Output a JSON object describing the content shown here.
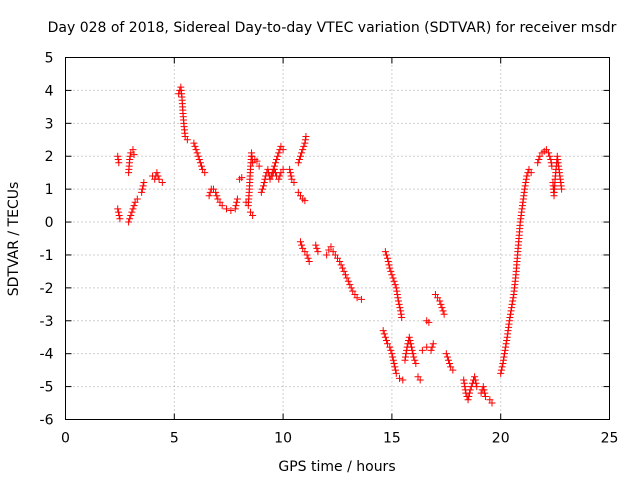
{
  "chart_data": {
    "type": "scatter",
    "title": "Day 028 of 2018, Sidereal Day-to-day VTEC variation (SDTVAR) for receiver msdr",
    "xlabel": "GPS time / hours",
    "ylabel": "SDTVAR / TECUs",
    "xlim": [
      0,
      25
    ],
    "ylim": [
      -6,
      5
    ],
    "xticks": [
      "0",
      "5",
      "10",
      "15",
      "20",
      "25"
    ],
    "yticks": [
      "5",
      "4",
      "3",
      "2",
      "1",
      "0",
      "-1",
      "-2",
      "-3",
      "-4",
      "-5",
      "-6"
    ],
    "grid": true,
    "marker": "+",
    "color": "#ff0000",
    "series": [
      {
        "name": "SDTVAR",
        "segments": [
          [
            [
              2.4,
              2.0
            ],
            [
              2.45,
              1.8
            ]
          ],
          [
            [
              2.4,
              0.4
            ],
            [
              2.5,
              0.1
            ]
          ],
          [
            [
              2.9,
              0.0
            ],
            [
              3.0,
              0.2
            ],
            [
              3.1,
              0.4
            ],
            [
              3.2,
              0.6
            ],
            [
              3.3,
              0.7
            ]
          ],
          [
            [
              2.9,
              1.5
            ],
            [
              2.95,
              1.9
            ],
            [
              3.0,
              2.1
            ],
            [
              3.1,
              2.2
            ],
            [
              3.15,
              2.05
            ]
          ],
          [
            [
              3.5,
              0.9
            ],
            [
              3.6,
              1.2
            ]
          ],
          [
            [
              4.0,
              1.4
            ],
            [
              4.1,
              1.3
            ],
            [
              4.2,
              1.5
            ],
            [
              4.3,
              1.3
            ],
            [
              4.45,
              1.2
            ]
          ],
          [
            [
              5.2,
              3.9
            ],
            [
              5.3,
              4.1
            ],
            [
              5.35,
              3.8
            ],
            [
              5.4,
              3.3
            ],
            [
              5.45,
              2.9
            ],
            [
              5.5,
              2.6
            ],
            [
              5.6,
              2.5
            ]
          ],
          [
            [
              5.9,
              2.4
            ],
            [
              6.0,
              2.2
            ],
            [
              6.1,
              2.0
            ],
            [
              6.2,
              1.8
            ],
            [
              6.3,
              1.6
            ],
            [
              6.4,
              1.5
            ]
          ],
          [
            [
              6.6,
              0.8
            ],
            [
              6.7,
              1.0
            ],
            [
              6.8,
              1.0
            ],
            [
              6.9,
              0.9
            ],
            [
              7.0,
              0.7
            ],
            [
              7.1,
              0.6
            ],
            [
              7.2,
              0.5
            ],
            [
              7.4,
              0.4
            ],
            [
              7.6,
              0.35
            ],
            [
              7.8,
              0.4
            ],
            [
              7.9,
              0.7
            ]
          ],
          [
            [
              8.0,
              1.3
            ],
            [
              8.1,
              1.35
            ]
          ],
          [
            [
              8.3,
              0.6
            ],
            [
              8.4,
              0.5
            ],
            [
              8.45,
              1.0
            ],
            [
              8.5,
              1.6
            ],
            [
              8.55,
              2.1
            ],
            [
              8.6,
              1.8
            ],
            [
              8.7,
              1.9
            ],
            [
              8.8,
              1.85
            ],
            [
              8.9,
              1.7
            ]
          ],
          [
            [
              8.5,
              0.3
            ],
            [
              8.6,
              0.2
            ]
          ],
          [
            [
              9.0,
              0.9
            ],
            [
              9.1,
              1.1
            ],
            [
              9.2,
              1.4
            ],
            [
              9.3,
              1.6
            ],
            [
              9.4,
              1.3
            ],
            [
              9.5,
              1.5
            ],
            [
              9.6,
              1.7
            ],
            [
              9.7,
              1.9
            ],
            [
              9.8,
              2.1
            ],
            [
              9.9,
              2.3
            ],
            [
              10.0,
              2.2
            ]
          ],
          [
            [
              9.5,
              1.4
            ],
            [
              9.6,
              1.6
            ],
            [
              9.7,
              1.4
            ],
            [
              9.8,
              1.3
            ],
            [
              9.9,
              1.5
            ],
            [
              10.0,
              1.6
            ]
          ],
          [
            [
              10.3,
              1.6
            ],
            [
              10.4,
              1.3
            ],
            [
              10.5,
              1.2
            ]
          ],
          [
            [
              10.7,
              1.8
            ],
            [
              10.8,
              2.0
            ],
            [
              10.9,
              2.2
            ],
            [
              11.0,
              2.4
            ],
            [
              11.05,
              2.6
            ]
          ],
          [
            [
              10.7,
              0.9
            ],
            [
              10.8,
              0.8
            ],
            [
              10.9,
              0.7
            ],
            [
              11.0,
              0.65
            ]
          ],
          [
            [
              10.8,
              -0.6
            ],
            [
              10.9,
              -0.8
            ],
            [
              11.0,
              -0.9
            ],
            [
              11.1,
              -1.0
            ],
            [
              11.2,
              -1.2
            ]
          ],
          [
            [
              11.5,
              -0.7
            ],
            [
              11.6,
              -0.9
            ]
          ],
          [
            [
              12.0,
              -1.0
            ],
            [
              12.1,
              -0.85
            ],
            [
              12.2,
              -0.75
            ],
            [
              12.3,
              -0.9
            ],
            [
              12.4,
              -1.0
            ],
            [
              12.6,
              -1.2
            ],
            [
              12.8,
              -1.5
            ],
            [
              13.0,
              -1.8
            ],
            [
              13.2,
              -2.1
            ],
            [
              13.4,
              -2.3
            ],
            [
              13.6,
              -2.35
            ]
          ],
          [
            [
              14.7,
              -0.9
            ],
            [
              14.8,
              -1.1
            ],
            [
              14.9,
              -1.4
            ],
            [
              15.0,
              -1.6
            ],
            [
              15.1,
              -1.8
            ],
            [
              15.2,
              -2.0
            ],
            [
              15.3,
              -2.4
            ],
            [
              15.4,
              -2.7
            ],
            [
              15.45,
              -2.9
            ]
          ],
          [
            [
              14.6,
              -3.3
            ],
            [
              14.7,
              -3.5
            ],
            [
              14.8,
              -3.7
            ],
            [
              14.9,
              -3.8
            ],
            [
              15.0,
              -4.0
            ],
            [
              15.1,
              -4.3
            ],
            [
              15.2,
              -4.6
            ],
            [
              15.35,
              -4.75
            ],
            [
              15.5,
              -4.8
            ]
          ],
          [
            [
              15.6,
              -4.2
            ],
            [
              15.7,
              -3.8
            ],
            [
              15.8,
              -3.5
            ],
            [
              15.9,
              -3.8
            ],
            [
              16.0,
              -4.1
            ],
            [
              16.1,
              -4.3
            ]
          ],
          [
            [
              16.2,
              -4.7
            ],
            [
              16.3,
              -4.8
            ]
          ],
          [
            [
              16.4,
              -3.9
            ],
            [
              16.6,
              -3.8
            ],
            [
              16.8,
              -3.9
            ],
            [
              16.9,
              -3.7
            ]
          ],
          [
            [
              16.6,
              -3.0
            ],
            [
              16.7,
              -3.05
            ]
          ],
          [
            [
              17.0,
              -2.2
            ],
            [
              17.1,
              -2.3
            ],
            [
              17.2,
              -2.4
            ],
            [
              17.3,
              -2.6
            ],
            [
              17.4,
              -2.8
            ]
          ],
          [
            [
              17.5,
              -4.0
            ],
            [
              17.6,
              -4.2
            ],
            [
              17.7,
              -4.4
            ],
            [
              17.8,
              -4.5
            ]
          ],
          [
            [
              18.3,
              -4.8
            ],
            [
              18.4,
              -5.2
            ],
            [
              18.5,
              -5.4
            ],
            [
              18.6,
              -5.1
            ],
            [
              18.7,
              -4.9
            ],
            [
              18.8,
              -4.7
            ],
            [
              18.9,
              -5.0
            ]
          ],
          [
            [
              19.1,
              -5.2
            ],
            [
              19.2,
              -5.0
            ],
            [
              19.3,
              -5.3
            ]
          ],
          [
            [
              19.5,
              -5.4
            ],
            [
              19.6,
              -5.5
            ]
          ],
          [
            [
              20.0,
              -4.6
            ],
            [
              20.1,
              -4.3
            ],
            [
              20.2,
              -3.9
            ],
            [
              20.3,
              -3.5
            ],
            [
              20.4,
              -3.0
            ],
            [
              20.5,
              -2.6
            ],
            [
              20.6,
              -2.2
            ],
            [
              20.7,
              -1.6
            ],
            [
              20.8,
              -0.8
            ],
            [
              20.9,
              0.0
            ],
            [
              21.0,
              0.5
            ],
            [
              21.1,
              1.0
            ],
            [
              21.2,
              1.4
            ],
            [
              21.3,
              1.6
            ],
            [
              21.4,
              1.5
            ]
          ],
          [
            [
              21.7,
              1.8
            ],
            [
              21.8,
              2.0
            ],
            [
              21.9,
              2.1
            ],
            [
              22.0,
              2.15
            ],
            [
              22.1,
              2.2
            ],
            [
              22.2,
              2.1
            ],
            [
              22.3,
              1.9
            ],
            [
              22.35,
              1.7
            ]
          ],
          [
            [
              22.4,
              1.2
            ],
            [
              22.45,
              0.8
            ],
            [
              22.5,
              1.3
            ],
            [
              22.6,
              2.0
            ],
            [
              22.7,
              1.5
            ],
            [
              22.8,
              1.0
            ]
          ]
        ]
      }
    ]
  }
}
